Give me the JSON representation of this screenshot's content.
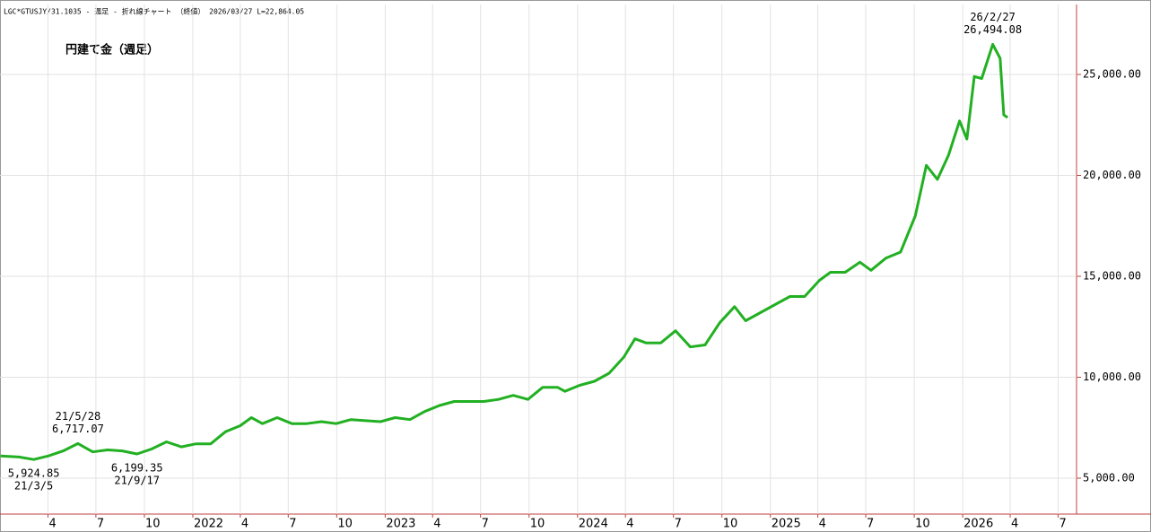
{
  "chart_data": {
    "type": "line",
    "header": "LGC*GTUSJY/31.1035 - 週足 - 折れ線チャート （終値） 2026/03/27 L=22,864.05",
    "title": "円建て金（週足）",
    "x": [
      "2021-01-01",
      "2021-02-05",
      "2021-03-05",
      "2021-04-02",
      "2021-04-30",
      "2021-05-28",
      "2021-06-25",
      "2021-07-23",
      "2021-08-20",
      "2021-09-17",
      "2021-10-15",
      "2021-11-12",
      "2021-12-10",
      "2022-01-07",
      "2022-02-04",
      "2022-03-04",
      "2022-04-01",
      "2022-04-22",
      "2022-05-13",
      "2022-06-10",
      "2022-07-08",
      "2022-08-05",
      "2022-09-02",
      "2022-09-30",
      "2022-10-28",
      "2022-11-25",
      "2022-12-23",
      "2023-01-20",
      "2023-02-17",
      "2023-03-17",
      "2023-04-14",
      "2023-05-12",
      "2023-06-09",
      "2023-07-07",
      "2023-08-04",
      "2023-09-01",
      "2023-09-29",
      "2023-10-27",
      "2023-11-24",
      "2023-12-08",
      "2024-01-05",
      "2024-02-02",
      "2024-03-01",
      "2024-03-29",
      "2024-04-19",
      "2024-05-10",
      "2024-06-07",
      "2024-07-05",
      "2024-08-02",
      "2024-08-30",
      "2024-09-27",
      "2024-10-25",
      "2024-11-15",
      "2024-12-13",
      "2025-01-10",
      "2025-02-07",
      "2025-03-07",
      "2025-04-04",
      "2025-04-25",
      "2025-05-23",
      "2025-06-20",
      "2025-07-11",
      "2025-08-08",
      "2025-09-05",
      "2025-10-03",
      "2025-10-24",
      "2025-11-14",
      "2025-12-05",
      "2025-12-26",
      "2026-01-09",
      "2026-01-23",
      "2026-02-06",
      "2026-02-27",
      "2026-03-13",
      "2026-03-20",
      "2026-03-27"
    ],
    "series": [
      {
        "color": "#22b022",
        "values": [
          6100,
          6050,
          5924.85,
          6100,
          6350,
          6717.07,
          6300,
          6400,
          6350,
          6199.35,
          6450,
          6800,
          6550,
          6700,
          6700,
          7300,
          7600,
          8000,
          7700,
          8000,
          7700,
          7700,
          7800,
          7700,
          7900,
          7850,
          7800,
          8000,
          7900,
          8300,
          8600,
          8800,
          8800,
          8800,
          8900,
          9100,
          8900,
          9500,
          9500,
          9300,
          9600,
          9800,
          10200,
          11000,
          11900,
          11700,
          11700,
          12300,
          11500,
          11600,
          12700,
          13500,
          12800,
          13200,
          13600,
          14000,
          14000,
          14800,
          15200,
          15200,
          15700,
          15300,
          15900,
          16200,
          18000,
          20500,
          19800,
          21000,
          22700,
          21800,
          24900,
          24800,
          26494.08,
          25800,
          23000,
          22864.05
        ]
      }
    ],
    "annotations": [
      {
        "x": "2021-05-28",
        "value": 6717.07,
        "date_label": "21/5/28",
        "value_label": "6,717.07",
        "position": "above"
      },
      {
        "x": "2021-03-05",
        "value": 5924.85,
        "date_label": "21/3/5",
        "value_label": "5,924.85",
        "position": "below"
      },
      {
        "x": "2021-09-17",
        "value": 6199.35,
        "date_label": "21/9/17",
        "value_label": "6,199.35",
        "position": "below"
      },
      {
        "x": "2026-02-27",
        "value": 26494.08,
        "date_label": "26/2/27",
        "value_label": "26,494.08",
        "position": "above"
      }
    ],
    "xlim": [
      "2020-12-31",
      "2026-08-05"
    ],
    "xticks": [
      {
        "value": "2021-04-01",
        "label": "4"
      },
      {
        "value": "2021-07-01",
        "label": "7"
      },
      {
        "value": "2021-10-01",
        "label": "10"
      },
      {
        "value": "2022-01-01",
        "label": "2022"
      },
      {
        "value": "2022-04-01",
        "label": "4"
      },
      {
        "value": "2022-07-01",
        "label": "7"
      },
      {
        "value": "2022-10-01",
        "label": "10"
      },
      {
        "value": "2023-01-01",
        "label": "2023"
      },
      {
        "value": "2023-04-01",
        "label": "4"
      },
      {
        "value": "2023-07-01",
        "label": "7"
      },
      {
        "value": "2023-10-01",
        "label": "10"
      },
      {
        "value": "2024-01-01",
        "label": "2024"
      },
      {
        "value": "2024-04-01",
        "label": "4"
      },
      {
        "value": "2024-07-01",
        "label": "7"
      },
      {
        "value": "2024-10-01",
        "label": "10"
      },
      {
        "value": "2025-01-01",
        "label": "2025"
      },
      {
        "value": "2025-04-01",
        "label": "4"
      },
      {
        "value": "2025-07-01",
        "label": "7"
      },
      {
        "value": "2025-10-01",
        "label": "10"
      },
      {
        "value": "2026-01-01",
        "label": "2026"
      },
      {
        "value": "2026-04-01",
        "label": "4"
      },
      {
        "value": "2026-07-01",
        "label": "7"
      }
    ],
    "ylim": [
      3222,
      28467
    ],
    "yticks": [
      {
        "value": 5000,
        "label": "5,000.00"
      },
      {
        "value": 10000,
        "label": "10,000.00"
      },
      {
        "value": 15000,
        "label": "15,000.00"
      },
      {
        "value": 20000,
        "label": "20,000.00"
      },
      {
        "value": 25000,
        "label": "25,000.00"
      }
    ],
    "grid": true
  }
}
